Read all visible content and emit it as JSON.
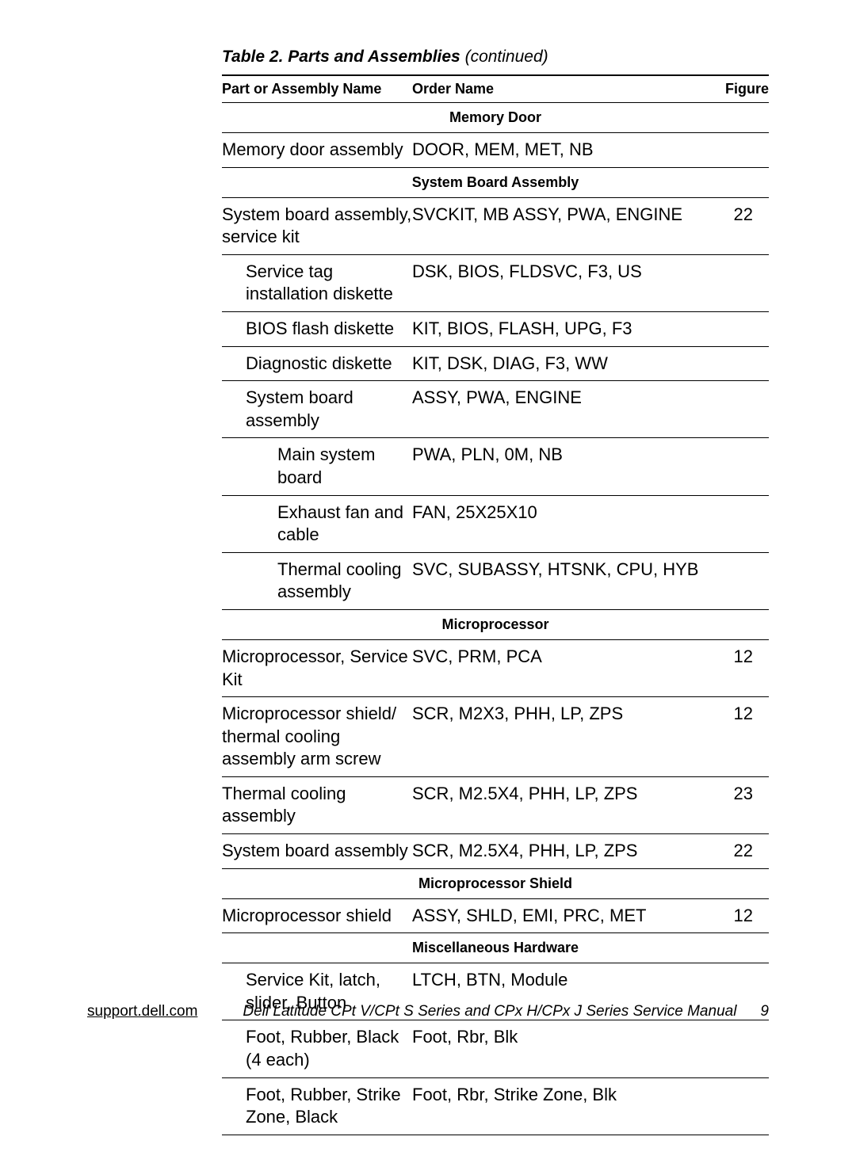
{
  "title_prefix": "Table 2. Parts and Assemblies ",
  "title_suffix": "(continued)",
  "columns": [
    {
      "label": "Part or Assembly Name"
    },
    {
      "label": "Order Name"
    },
    {
      "label": "Figure"
    }
  ],
  "rows": [
    {
      "type": "section",
      "label": "Memory Door"
    },
    {
      "type": "data",
      "part": "Memory door assembly",
      "order": "DOOR, MEM, MET, NB",
      "figure": "",
      "indent": 0
    },
    {
      "type": "section",
      "label": "System Board Assembly"
    },
    {
      "type": "data",
      "part": "System board assembly, service kit",
      "order": "SVCKIT, MB ASSY, PWA, ENGINE",
      "figure": "22",
      "indent": 0
    },
    {
      "type": "data",
      "part": "Service tag installation diskette",
      "order": "DSK, BIOS, FLDSVC, F3, US",
      "figure": "",
      "indent": 1
    },
    {
      "type": "data",
      "part": "BIOS flash diskette",
      "order": "KIT, BIOS, FLASH, UPG, F3",
      "figure": "",
      "indent": 1
    },
    {
      "type": "data",
      "part": "Diagnostic diskette",
      "order": "KIT, DSK, DIAG, F3, WW",
      "figure": "",
      "indent": 1
    },
    {
      "type": "data",
      "part": "System board assembly",
      "order": "ASSY, PWA, ENGINE",
      "figure": "",
      "indent": 1
    },
    {
      "type": "data",
      "part": "Main system board",
      "order": "PWA, PLN, 0M, NB",
      "figure": "",
      "indent": 2
    },
    {
      "type": "data",
      "part": "Exhaust fan and cable",
      "order": "FAN, 25X25X10",
      "figure": "",
      "indent": 2
    },
    {
      "type": "data",
      "part": "Thermal cooling assembly",
      "order": "SVC, SUBASSY, HTSNK, CPU, HYB",
      "figure": "",
      "indent": 2
    },
    {
      "type": "section",
      "label": "Microprocessor"
    },
    {
      "type": "data",
      "part": "Microprocessor, Service Kit",
      "order": "SVC, PRM, PCA",
      "figure": "12",
      "indent": 0
    },
    {
      "type": "data",
      "part": "Microprocessor shield/ thermal cooling assembly arm screw",
      "order": "SCR, M2X3, PHH, LP, ZPS",
      "figure": "12",
      "indent": 0
    },
    {
      "type": "data",
      "part": "Thermal cooling assembly",
      "order": "SCR, M2.5X4, PHH, LP, ZPS",
      "figure": "23",
      "indent": 0
    },
    {
      "type": "data",
      "part": "System board assembly",
      "order": "SCR, M2.5X4, PHH, LP, ZPS",
      "figure": "22",
      "indent": 0
    },
    {
      "type": "section",
      "label": "Microprocessor Shield"
    },
    {
      "type": "data",
      "part": "Microprocessor shield",
      "order": "ASSY, SHLD, EMI, PRC, MET",
      "figure": "12",
      "indent": 0
    },
    {
      "type": "section",
      "label": "Miscellaneous Hardware"
    },
    {
      "type": "data",
      "part": "Service Kit, latch, slider, Button",
      "order": "LTCH, BTN, Module",
      "figure": "",
      "indent": 1
    },
    {
      "type": "data",
      "part": "Foot, Rubber, Black (4 each)",
      "order": "Foot, Rbr, Blk",
      "figure": "",
      "indent": 1
    },
    {
      "type": "data",
      "part": "Foot, Rubber, Strike Zone, Black",
      "order": "Foot, Rbr, Strike Zone, Blk",
      "figure": "",
      "indent": 1
    }
  ],
  "footer": {
    "link": "support.dell.com",
    "manual": "Dell Latitude CPt V/CPt S Series and CPx H/CPx J Series Service Manual",
    "page": "9"
  }
}
